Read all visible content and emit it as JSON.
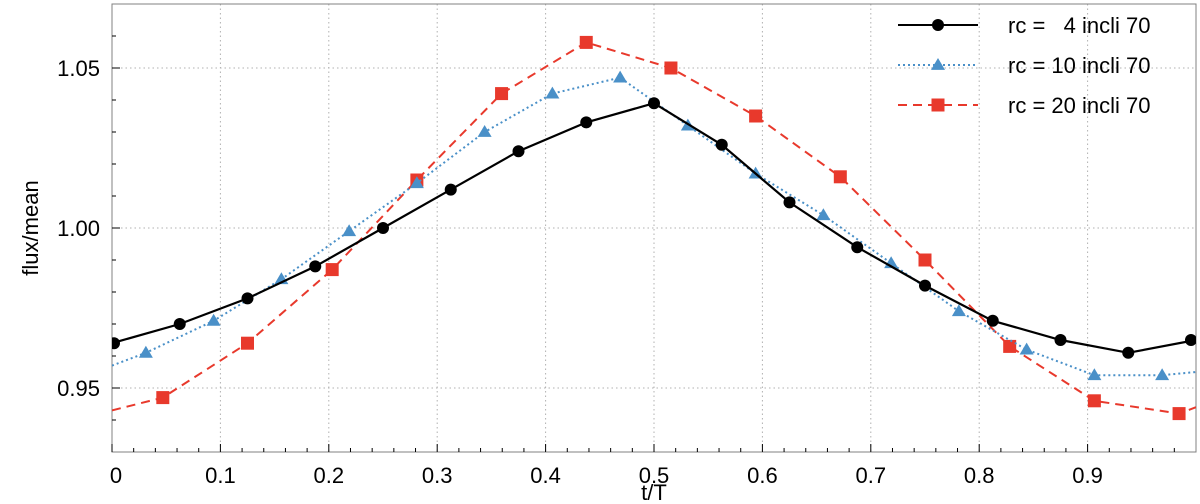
{
  "chart_data": {
    "type": "line",
    "title": "",
    "xlabel": "t/T",
    "ylabel": "flux/mean",
    "xlim": [
      0,
      1
    ],
    "ylim": [
      0.93,
      1.07
    ],
    "xticks": [
      0,
      0.1,
      0.2,
      0.3,
      0.4,
      0.5,
      0.6,
      0.7,
      0.8,
      0.9
    ],
    "xtick_labels": [
      "0",
      "0.1",
      "0.2",
      "0.3",
      "0.4",
      "0.5",
      "0.6",
      "0.7",
      "0.8",
      "0.9"
    ],
    "yticks": [
      0.95,
      1.0,
      1.05
    ],
    "ytick_labels": [
      "0.95",
      "1.00",
      "1.05"
    ],
    "grid": true,
    "legend_position": "top-right",
    "series": [
      {
        "name": "rc =   4 incli 70",
        "color": "#000000",
        "line_style": "solid",
        "marker": "circle",
        "x": [
          0.0,
          0.0625,
          0.125,
          0.1875,
          0.25,
          0.3125,
          0.375,
          0.4375,
          0.5,
          0.5625,
          0.625,
          0.6875,
          0.75,
          0.8125,
          0.875,
          0.9375,
          1.0
        ],
        "y": [
          0.964,
          0.97,
          0.978,
          0.988,
          1.0,
          1.012,
          1.024,
          1.033,
          1.039,
          1.026,
          1.008,
          0.994,
          0.982,
          0.971,
          0.965,
          0.961,
          0.965
        ]
      },
      {
        "name": "rc = 10 incli 70",
        "color": "#4a90c8",
        "line_style": "dotted",
        "marker": "triangle",
        "x": [
          0.0,
          0.03125,
          0.09375,
          0.15625,
          0.21875,
          0.28125,
          0.34375,
          0.40625,
          0.46875,
          0.53125,
          0.59375,
          0.65625,
          0.71875,
          0.78125,
          0.84375,
          0.90625,
          0.96875,
          1.0
        ],
        "y": [
          0.957,
          0.961,
          0.971,
          0.984,
          0.999,
          1.014,
          1.03,
          1.042,
          1.047,
          1.032,
          1.017,
          1.004,
          0.989,
          0.974,
          0.962,
          0.954,
          0.954,
          0.955
        ]
      },
      {
        "name": "rc = 20 incli 70",
        "color": "#e8392c",
        "line_style": "dashed",
        "marker": "square",
        "x": [
          0.0,
          0.046875,
          0.125,
          0.203125,
          0.28125,
          0.359375,
          0.4375,
          0.515625,
          0.59375,
          0.671875,
          0.75,
          0.828125,
          0.90625,
          0.984375,
          1.0
        ],
        "y": [
          0.943,
          0.947,
          0.964,
          0.987,
          1.015,
          1.042,
          1.058,
          1.05,
          1.035,
          1.016,
          0.99,
          0.963,
          0.946,
          0.942,
          0.944
        ]
      }
    ]
  }
}
